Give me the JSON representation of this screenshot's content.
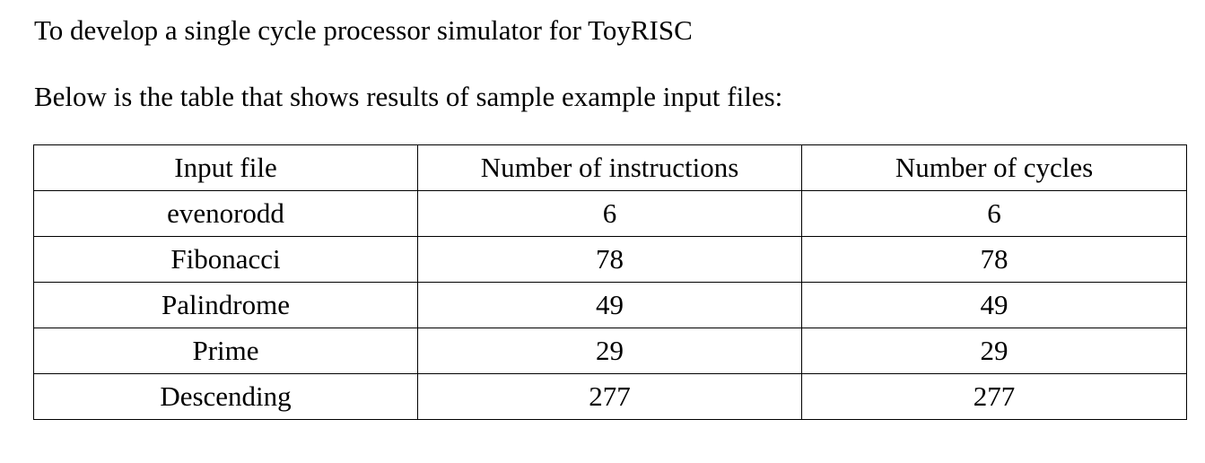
{
  "document": {
    "objective": "To develop a single cycle processor simulator for ToyRISC",
    "intro": "Below is the table that shows results of sample example input files:"
  },
  "table": {
    "headers": [
      "Input file",
      "Number of instructions",
      "Number of cycles"
    ],
    "rows": [
      [
        "evenorodd",
        "6",
        "6"
      ],
      [
        "Fibonacci",
        "78",
        "78"
      ],
      [
        "Palindrome",
        "49",
        "49"
      ],
      [
        "Prime",
        "29",
        "29"
      ],
      [
        "Descending",
        "277",
        "277"
      ]
    ]
  }
}
